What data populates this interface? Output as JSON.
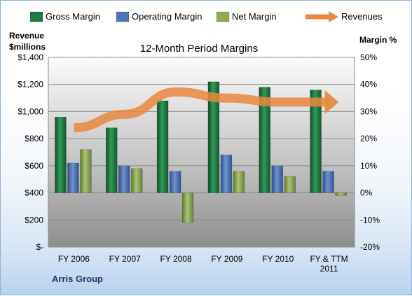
{
  "chart_data": {
    "type": "bar",
    "title": "12-Month Period Margins",
    "categories": [
      [
        "FY 2006"
      ],
      [
        "FY 2007"
      ],
      [
        "FY 2008"
      ],
      [
        "FY 2009"
      ],
      [
        "FY 2010"
      ],
      [
        "FY & TTM",
        "2011"
      ]
    ],
    "series": [
      {
        "name": "Gross Margin",
        "axis": "right",
        "color": "#1f7a44",
        "values": [
          28,
          24,
          34,
          41,
          39,
          38
        ]
      },
      {
        "name": "Operating Margin",
        "axis": "right",
        "color": "#4f74b8",
        "values": [
          11,
          10,
          8,
          14,
          10,
          8
        ]
      },
      {
        "name": "Net Margin",
        "axis": "right",
        "color": "#8faa55",
        "values": [
          16,
          9,
          -11,
          8,
          6,
          -1
        ]
      },
      {
        "name": "Revenues",
        "type": "line",
        "axis": "left",
        "color": "#e8883f",
        "values": [
          880,
          980,
          1145,
          1100,
          1070,
          1070
        ]
      }
    ],
    "left_axis": {
      "label_lines": [
        "Revenue",
        "$millions"
      ],
      "range": [
        0,
        1400
      ],
      "ticks": [
        0,
        200,
        400,
        600,
        800,
        1000,
        1200,
        1400
      ],
      "tick_labels": [
        "$-",
        "$200",
        "$400",
        "$600",
        "$800",
        "$1,000",
        "$1,200",
        "$1,400"
      ]
    },
    "right_axis": {
      "label": "Margin %",
      "range": [
        -20,
        50
      ],
      "ticks": [
        -20,
        -10,
        0,
        10,
        20,
        30,
        40,
        50
      ],
      "tick_labels": [
        "-20%",
        "-10%",
        "0%",
        "10%",
        "20%",
        "30%",
        "40%",
        "50%"
      ]
    },
    "legend_position": "top",
    "grid": true
  },
  "footer": {
    "company": "Arris Group"
  }
}
